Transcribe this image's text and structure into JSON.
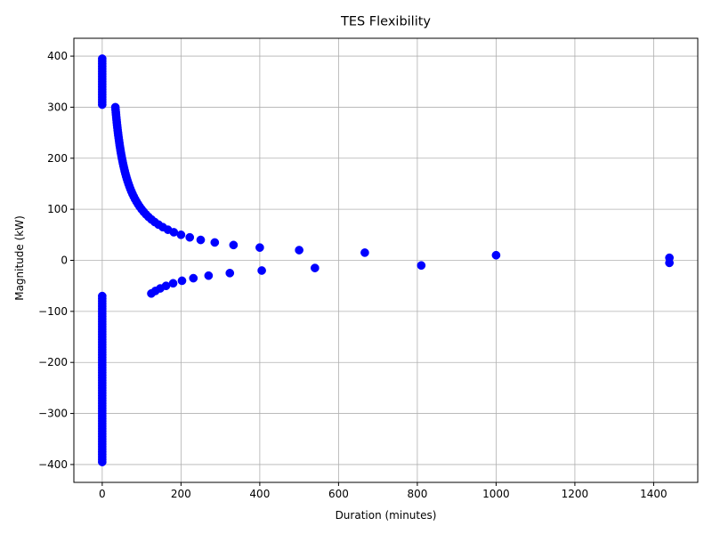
{
  "chart_data": {
    "type": "scatter",
    "title": "TES Flexibility",
    "xlabel": "Duration (minutes)",
    "ylabel": "Magnitude (kW)",
    "xlim": [
      -72,
      1512
    ],
    "ylim": [
      -435,
      435
    ],
    "xticks": [
      0,
      200,
      400,
      600,
      800,
      1000,
      1200,
      1400
    ],
    "yticks": [
      -400,
      -300,
      -200,
      -100,
      0,
      100,
      200,
      300,
      400
    ],
    "grid": true,
    "point_color": "#0000ff",
    "series": [
      {
        "points": [
          [
            0,
            395
          ],
          [
            0,
            390
          ],
          [
            0,
            385
          ],
          [
            0,
            380
          ],
          [
            0,
            375
          ],
          [
            0,
            370
          ],
          [
            0,
            365
          ],
          [
            0,
            360
          ],
          [
            0,
            355
          ],
          [
            0,
            350
          ],
          [
            0,
            345
          ],
          [
            0,
            340
          ],
          [
            0,
            335
          ],
          [
            0,
            330
          ],
          [
            0,
            325
          ],
          [
            0,
            320
          ],
          [
            0,
            315
          ],
          [
            0,
            310
          ],
          [
            0,
            305
          ],
          [
            33.3,
            300
          ],
          [
            33.9,
            295
          ],
          [
            34.5,
            290
          ],
          [
            35.1,
            285
          ],
          [
            35.7,
            280
          ],
          [
            36.4,
            275
          ],
          [
            37.0,
            270
          ],
          [
            37.7,
            265
          ],
          [
            38.5,
            260
          ],
          [
            39.2,
            255
          ],
          [
            40.0,
            250
          ],
          [
            40.8,
            245
          ],
          [
            41.7,
            240
          ],
          [
            42.6,
            235
          ],
          [
            43.5,
            230
          ],
          [
            44.4,
            225
          ],
          [
            45.5,
            220
          ],
          [
            46.5,
            215
          ],
          [
            47.6,
            210
          ],
          [
            48.8,
            205
          ],
          [
            50.0,
            200
          ],
          [
            51.3,
            195
          ],
          [
            52.6,
            190
          ],
          [
            54.1,
            185
          ],
          [
            55.6,
            180
          ],
          [
            57.1,
            175
          ],
          [
            58.8,
            170
          ],
          [
            60.6,
            165
          ],
          [
            62.5,
            160
          ],
          [
            64.5,
            155
          ],
          [
            66.7,
            150
          ],
          [
            69.0,
            145
          ],
          [
            71.4,
            140
          ],
          [
            74.1,
            135
          ],
          [
            76.9,
            130
          ],
          [
            80.0,
            125
          ],
          [
            83.3,
            120
          ],
          [
            87.0,
            115
          ],
          [
            90.9,
            110
          ],
          [
            95.2,
            105
          ],
          [
            100.0,
            100
          ],
          [
            105.3,
            95
          ],
          [
            111.1,
            90
          ],
          [
            117.6,
            85
          ],
          [
            125.0,
            80
          ],
          [
            133.3,
            75
          ],
          [
            142.9,
            70
          ],
          [
            153.8,
            65
          ],
          [
            166.7,
            60
          ],
          [
            181.8,
            55
          ],
          [
            200.0,
            50
          ],
          [
            222.2,
            45
          ],
          [
            250.0,
            40
          ],
          [
            285.7,
            35
          ],
          [
            333.3,
            30
          ],
          [
            400.0,
            25
          ],
          [
            500.0,
            20
          ],
          [
            666.7,
            15
          ],
          [
            1000.0,
            10
          ],
          [
            1440,
            5
          ],
          [
            1440,
            -5
          ],
          [
            810,
            -10
          ],
          [
            540,
            -15
          ],
          [
            405,
            -20
          ],
          [
            324,
            -25
          ],
          [
            270,
            -30
          ],
          [
            231.4,
            -35
          ],
          [
            202.5,
            -40
          ],
          [
            180,
            -45
          ],
          [
            162,
            -50
          ],
          [
            147.3,
            -55
          ],
          [
            135,
            -60
          ],
          [
            124.6,
            -65
          ],
          [
            0,
            -70
          ],
          [
            0,
            -75
          ],
          [
            0,
            -80
          ],
          [
            0,
            -85
          ],
          [
            0,
            -90
          ],
          [
            0,
            -95
          ],
          [
            0,
            -100
          ],
          [
            0,
            -105
          ],
          [
            0,
            -110
          ],
          [
            0,
            -115
          ],
          [
            0,
            -120
          ],
          [
            0,
            -125
          ],
          [
            0,
            -130
          ],
          [
            0,
            -135
          ],
          [
            0,
            -140
          ],
          [
            0,
            -145
          ],
          [
            0,
            -150
          ],
          [
            0,
            -155
          ],
          [
            0,
            -160
          ],
          [
            0,
            -165
          ],
          [
            0,
            -170
          ],
          [
            0,
            -175
          ],
          [
            0,
            -180
          ],
          [
            0,
            -185
          ],
          [
            0,
            -190
          ],
          [
            0,
            -195
          ],
          [
            0,
            -200
          ],
          [
            0,
            -205
          ],
          [
            0,
            -210
          ],
          [
            0,
            -215
          ],
          [
            0,
            -220
          ],
          [
            0,
            -225
          ],
          [
            0,
            -230
          ],
          [
            0,
            -235
          ],
          [
            0,
            -240
          ],
          [
            0,
            -245
          ],
          [
            0,
            -250
          ],
          [
            0,
            -255
          ],
          [
            0,
            -260
          ],
          [
            0,
            -265
          ],
          [
            0,
            -270
          ],
          [
            0,
            -275
          ],
          [
            0,
            -280
          ],
          [
            0,
            -285
          ],
          [
            0,
            -290
          ],
          [
            0,
            -295
          ],
          [
            0,
            -300
          ],
          [
            0,
            -305
          ],
          [
            0,
            -310
          ],
          [
            0,
            -315
          ],
          [
            0,
            -320
          ],
          [
            0,
            -325
          ],
          [
            0,
            -330
          ],
          [
            0,
            -335
          ],
          [
            0,
            -340
          ],
          [
            0,
            -345
          ],
          [
            0,
            -350
          ],
          [
            0,
            -355
          ],
          [
            0,
            -360
          ],
          [
            0,
            -365
          ],
          [
            0,
            -370
          ],
          [
            0,
            -375
          ],
          [
            0,
            -380
          ],
          [
            0,
            -385
          ],
          [
            0,
            -390
          ],
          [
            0,
            -395
          ]
        ]
      }
    ]
  }
}
